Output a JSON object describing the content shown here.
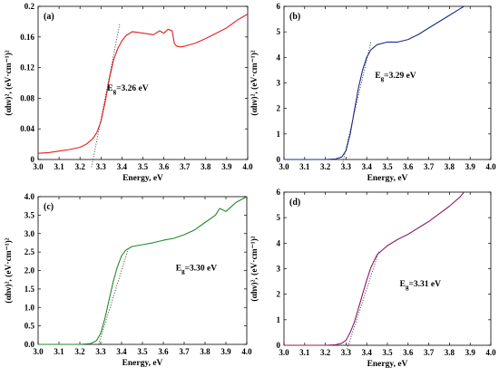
{
  "chart_data": [
    {
      "type": "line",
      "panel_label": "(a)",
      "xlabel": "Energy, eV",
      "ylabel": "(αhν)², (eV·cm⁻¹)²",
      "xlim": [
        3.0,
        4.0
      ],
      "ylim": [
        0,
        0.2
      ],
      "xticks": [
        "3.0",
        "3.1",
        "3.2",
        "3.3",
        "3.4",
        "3.5",
        "3.6",
        "3.7",
        "3.8",
        "3.9",
        "4.0"
      ],
      "yticks": [
        "0",
        "0.04",
        "0.08",
        "0.12",
        "0.16",
        "0.2"
      ],
      "annotation": "Eg=3.26 eV",
      "annotation_xy": [
        3.33,
        0.09
      ],
      "line_color": "#e02020",
      "series": [
        {
          "x": [
            3.0,
            3.05,
            3.1,
            3.15,
            3.2,
            3.23,
            3.26,
            3.28,
            3.3,
            3.32,
            3.34,
            3.36,
            3.38,
            3.4,
            3.42,
            3.45,
            3.5,
            3.55,
            3.58,
            3.6,
            3.62,
            3.64,
            3.65,
            3.66,
            3.68,
            3.7,
            3.75,
            3.8,
            3.85,
            3.9,
            3.95,
            4.0
          ],
          "y": [
            0.008,
            0.009,
            0.011,
            0.013,
            0.016,
            0.02,
            0.027,
            0.035,
            0.05,
            0.075,
            0.105,
            0.13,
            0.145,
            0.155,
            0.162,
            0.167,
            0.165,
            0.163,
            0.168,
            0.165,
            0.17,
            0.168,
            0.152,
            0.148,
            0.147,
            0.148,
            0.152,
            0.158,
            0.165,
            0.172,
            0.182,
            0.19
          ]
        }
      ],
      "tangent": {
        "x": [
          3.255,
          3.39
        ],
        "y": [
          -0.01,
          0.178
        ]
      }
    },
    {
      "type": "line",
      "panel_label": "(b)",
      "xlabel": "Energy, eV",
      "ylabel": "(αhν)², (eV·cm⁻¹)²",
      "xlim": [
        3.0,
        4.0
      ],
      "ylim": [
        0,
        6
      ],
      "xticks": [
        "3.0",
        "3.1",
        "3.2",
        "3.3",
        "3.4",
        "3.5",
        "3.6",
        "3.7",
        "3.8",
        "3.9",
        "4.0"
      ],
      "yticks": [
        "0",
        "1",
        "2",
        "3",
        "4",
        "5",
        "6"
      ],
      "annotation": "Eg=3.29 eV",
      "annotation_xy": [
        3.44,
        3.2
      ],
      "line_color": "#1c2a8a",
      "series": [
        {
          "x": [
            3.0,
            3.1,
            3.2,
            3.25,
            3.28,
            3.3,
            3.32,
            3.34,
            3.36,
            3.38,
            3.4,
            3.42,
            3.45,
            3.5,
            3.55,
            3.6,
            3.65,
            3.7,
            3.75,
            3.8,
            3.85,
            3.87
          ],
          "y": [
            0.0,
            0.0,
            0.0,
            0.02,
            0.1,
            0.35,
            1.0,
            1.9,
            2.8,
            3.5,
            4.0,
            4.3,
            4.5,
            4.6,
            4.6,
            4.7,
            4.9,
            5.15,
            5.4,
            5.65,
            5.9,
            6.0
          ]
        }
      ],
      "tangent": {
        "x": [
          3.285,
          3.42
        ],
        "y": [
          -0.1,
          4.6
        ]
      }
    },
    {
      "type": "line",
      "panel_label": "(c)",
      "xlabel": "Energy, eV",
      "ylabel": "(αhν)², (eV·cm⁻¹)²",
      "xlim": [
        3.0,
        4.0
      ],
      "ylim": [
        0,
        4.0
      ],
      "xticks": [
        "3.0",
        "3.1",
        "3.2",
        "3.3",
        "3.4",
        "3.5",
        "3.6",
        "3.7",
        "3.8",
        "3.9",
        "4.0"
      ],
      "yticks": [
        "0.0",
        "0.5",
        "1.0",
        "1.5",
        "2.0",
        "2.5",
        "3.0",
        "3.5",
        "4.0"
      ],
      "annotation": "Eg=3.30 eV",
      "annotation_xy": [
        3.66,
        2.0
      ],
      "line_color": "#1f8a2a",
      "series": [
        {
          "x": [
            3.0,
            3.1,
            3.2,
            3.25,
            3.28,
            3.3,
            3.32,
            3.34,
            3.36,
            3.38,
            3.4,
            3.42,
            3.45,
            3.5,
            3.55,
            3.6,
            3.65,
            3.7,
            3.75,
            3.8,
            3.85,
            3.87,
            3.9,
            3.95,
            4.0
          ],
          "y": [
            0.0,
            0.0,
            0.0,
            0.02,
            0.1,
            0.3,
            0.7,
            1.2,
            1.7,
            2.1,
            2.4,
            2.55,
            2.65,
            2.7,
            2.75,
            2.82,
            2.87,
            2.97,
            3.1,
            3.3,
            3.5,
            3.68,
            3.6,
            3.85,
            4.0
          ]
        }
      ],
      "tangent": {
        "x": [
          3.29,
          3.43
        ],
        "y": [
          0.0,
          2.55
        ]
      }
    },
    {
      "type": "line",
      "panel_label": "(d)",
      "xlabel": "Energy, eV",
      "ylabel": "(αhν)², (eV·cm⁻¹)²",
      "xlim": [
        3.0,
        4.0
      ],
      "ylim": [
        0,
        6
      ],
      "xticks": [
        "3.0",
        "3.1",
        "3.2",
        "3.3",
        "3.4",
        "3.5",
        "3.6",
        "3.7",
        "3.8",
        "3.9",
        "4.0"
      ],
      "yticks": [
        "0",
        "1",
        "2",
        "3",
        "4",
        "5",
        "6"
      ],
      "annotation": "Eg=3.31 eV",
      "annotation_xy": [
        3.56,
        2.3
      ],
      "line_color": "#8a1c6a",
      "series": [
        {
          "x": [
            3.0,
            3.1,
            3.2,
            3.25,
            3.28,
            3.3,
            3.32,
            3.34,
            3.36,
            3.38,
            3.4,
            3.42,
            3.45,
            3.5,
            3.55,
            3.6,
            3.65,
            3.7,
            3.75,
            3.8,
            3.85,
            3.87
          ],
          "y": [
            0.0,
            0.0,
            0.0,
            0.02,
            0.08,
            0.2,
            0.5,
            0.9,
            1.45,
            2.0,
            2.55,
            3.05,
            3.55,
            3.9,
            4.15,
            4.35,
            4.6,
            4.85,
            5.15,
            5.45,
            5.8,
            6.0
          ]
        }
      ],
      "tangent": {
        "x": [
          3.305,
          3.46
        ],
        "y": [
          -0.15,
          3.7
        ]
      }
    }
  ]
}
